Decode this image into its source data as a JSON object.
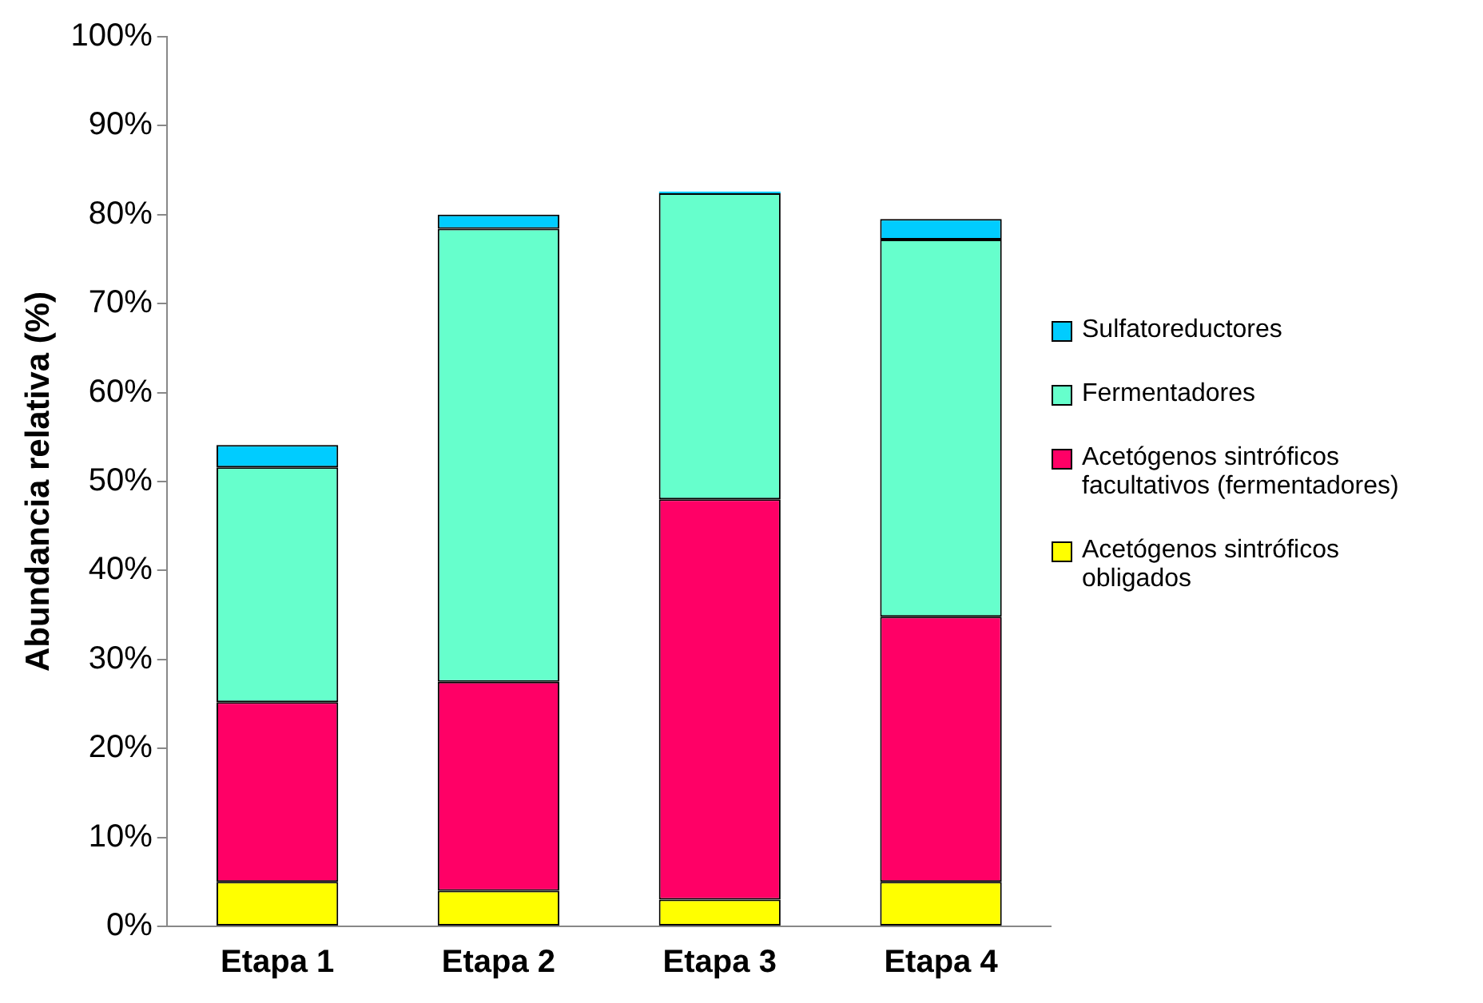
{
  "chart_data": {
    "type": "bar",
    "stacked": true,
    "ylabel": "Abundancia relativa (%)",
    "categories": [
      "Etapa 1",
      "Etapa 2",
      "Etapa 3",
      "Etapa 4"
    ],
    "series": [
      {
        "name": "Acetógenos sintróficos obligados",
        "color": "#ffff00",
        "values": [
          5,
          4,
          3,
          5
        ]
      },
      {
        "name": "Acetógenos sintróficos facultativos (fermentadores)",
        "color": "#ff0066",
        "values": [
          20.2,
          23.5,
          45,
          29.8
        ]
      },
      {
        "name": "Fermentadores",
        "color": "#66ffcc",
        "values": [
          26.4,
          50.9,
          34.4,
          42.4
        ]
      },
      {
        "name": "Sulfatoreductores",
        "color": "#00ccff",
        "values": [
          2.5,
          1.6,
          0.2,
          2.3
        ]
      }
    ],
    "ylim": [
      0,
      100
    ],
    "yticks": [
      {
        "value": 0,
        "label": "0%"
      },
      {
        "value": 10,
        "label": "10%"
      },
      {
        "value": 20,
        "label": "20%"
      },
      {
        "value": 30,
        "label": "30%"
      },
      {
        "value": 40,
        "label": "40%"
      },
      {
        "value": 50,
        "label": "50%"
      },
      {
        "value": 60,
        "label": "60%"
      },
      {
        "value": 70,
        "label": "70%"
      },
      {
        "value": 80,
        "label": "80%"
      },
      {
        "value": 90,
        "label": "90%"
      },
      {
        "value": 100,
        "label": "100%"
      }
    ],
    "grid": false,
    "legend": "right"
  }
}
